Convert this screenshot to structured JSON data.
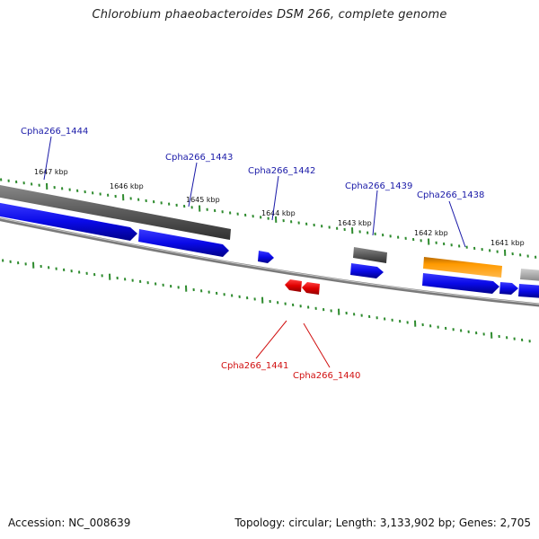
{
  "title": "Chlorobium phaeobacteroides DSM 266, complete genome",
  "footer": {
    "accession": "Accession: NC_008639",
    "summary": "Topology: circular; Length: 3,133,902 bp; Genes: 2,705"
  },
  "kbp_labels": [
    "1647 kbp",
    "1646 kbp",
    "1645 kbp",
    "1644 kbp",
    "1643 kbp",
    "1642 kbp",
    "1641 kbp"
  ],
  "gene_labels": [
    {
      "id": "label-1444",
      "text": "Cpha266_1444",
      "color": "#1a1aa8"
    },
    {
      "id": "label-1443",
      "text": "Cpha266_1443",
      "color": "#1a1aa8"
    },
    {
      "id": "label-1442",
      "text": "Cpha266_1442",
      "color": "#1a1aa8"
    },
    {
      "id": "label-1439",
      "text": "Cpha266_1439",
      "color": "#1a1aa8"
    },
    {
      "id": "label-1438",
      "text": "Cpha266_1438",
      "color": "#1a1aa8"
    },
    {
      "id": "label-1441",
      "text": "Cpha266_1441",
      "color": "#d11010"
    },
    {
      "id": "label-1440",
      "text": "Cpha266_1440",
      "color": "#d11010"
    }
  ],
  "colors": {
    "forward_cds": "#1010e0",
    "reverse_cds": "#e01010",
    "feature_gray": "#606060",
    "feature_orange": "#ff9900",
    "backbone": "#777777",
    "ticks": "#2e8b2e"
  }
}
